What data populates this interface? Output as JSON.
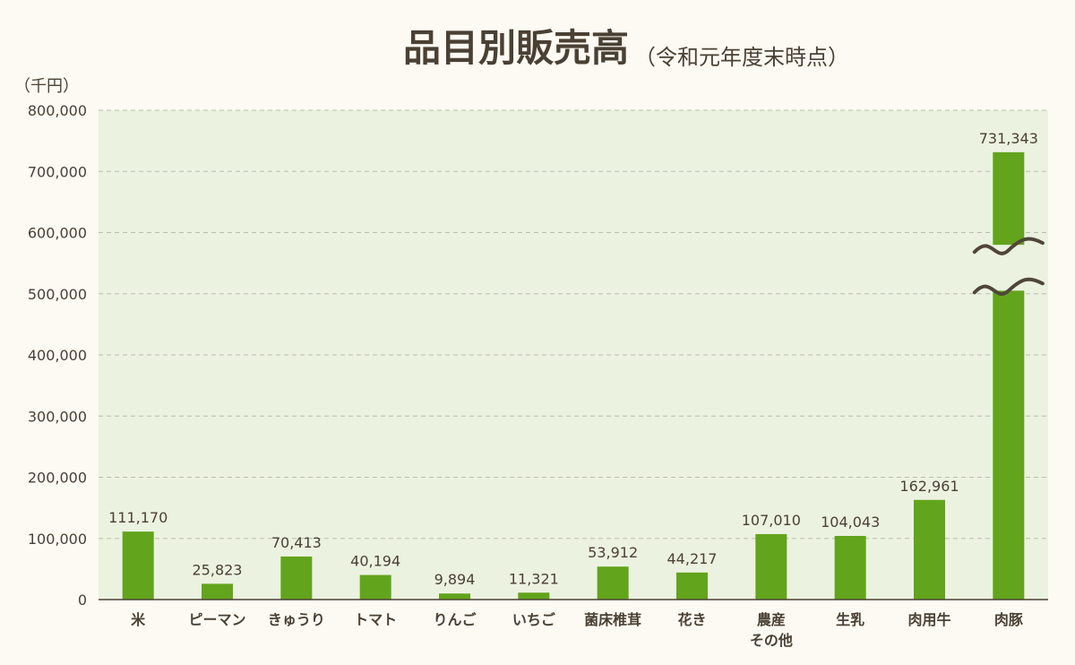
{
  "chart_data": {
    "type": "bar",
    "title": "品目別販売高",
    "subtitle": "（令和元年度末時点）",
    "unit_label": "（千円）",
    "categories": [
      "米",
      "ピーマン",
      "きゅうり",
      "トマト",
      "りんご",
      "いちご",
      "菌床椎茸",
      "花き",
      "農産\nその他",
      "生乳",
      "肉用牛",
      "肉豚"
    ],
    "values": [
      111170,
      25823,
      70413,
      40194,
      9894,
      11321,
      53912,
      44217,
      107010,
      104043,
      162961,
      731343
    ],
    "value_labels": [
      "111,170",
      "25,823",
      "70,413",
      "40,194",
      "9,894",
      "11,321",
      "53,912",
      "44,217",
      "107,010",
      "104,043",
      "162,961",
      "731,343"
    ],
    "ylim": [
      0,
      800000
    ],
    "yticks": [
      0,
      100000,
      200000,
      300000,
      400000,
      500000,
      600000,
      700000,
      800000
    ],
    "ytick_labels": [
      "0",
      "100,000",
      "200,000",
      "300,000",
      "400,000",
      "500,000",
      "600,000",
      "700,000",
      "800,000"
    ],
    "axis_break_on": "肉豚",
    "grid": true,
    "colors": {
      "bar": "#62a41c",
      "plot_bg": "#ecf2e0",
      "grid": "#b8bcae",
      "text": "#4a4034",
      "page_bg": "#fdfaf3",
      "break_mark": "#4f4639"
    }
  }
}
